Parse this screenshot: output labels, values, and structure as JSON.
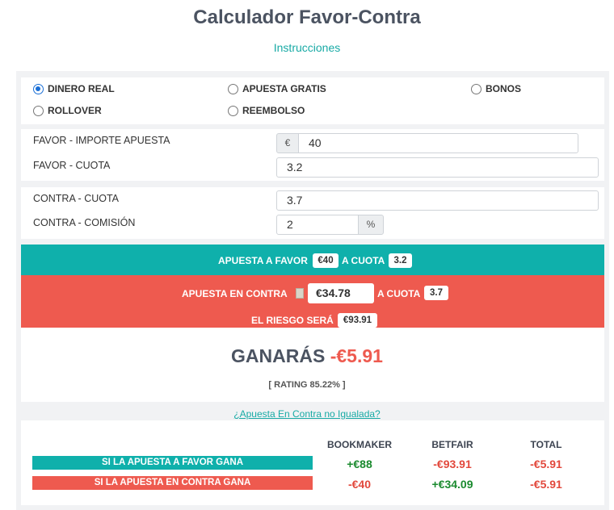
{
  "header": {
    "title": "Calculador Favor-Contra",
    "instructions_link": "Instrucciones"
  },
  "modes": [
    {
      "label": "DINERO REAL",
      "selected": true
    },
    {
      "label": "APUESTA GRATIS",
      "selected": false
    },
    {
      "label": "BONOS",
      "selected": false
    },
    {
      "label": "ROLLOVER",
      "selected": false
    },
    {
      "label": "REEMBOLSO",
      "selected": false
    }
  ],
  "favor": {
    "amount_label": "FAVOR - IMPORTE APUESTA",
    "currency_symbol": "€",
    "amount_value": "40",
    "odds_label": "FAVOR - CUOTA",
    "odds_value": "3.2"
  },
  "contra": {
    "odds_label": "CONTRA - CUOTA",
    "odds_value": "3.7",
    "commission_label": "CONTRA - COMISIÓN",
    "commission_value": "2",
    "percent_symbol": "%"
  },
  "summary": {
    "favor_text": "APUESTA A FAVOR",
    "favor_amount": "€40",
    "at_odds_text": "A CUOTA",
    "favor_odds": "3.2",
    "contra_text": "APUESTA EN CONTRA",
    "contra_amount": "€34.78",
    "contra_at_odds_text": "A CUOTA",
    "contra_odds": "3.7",
    "risk_text": "EL RIESGO SERÁ",
    "risk_amount": "€93.91"
  },
  "result": {
    "win_label": "GANARÁS",
    "win_value": "-€5.91",
    "rating": "[ RATING 85.22% ]"
  },
  "unmatched_link": "¿Apuesta En Contra no Igualada?",
  "table": {
    "headers": [
      "BOOKMAKER",
      "BETFAIR",
      "TOTAL"
    ],
    "rows": [
      {
        "label": "SI LA APUESTA A FAVOR GANA",
        "bookmaker": "+€88",
        "betfair": "-€93.91",
        "total": "-€5.91"
      },
      {
        "label": "SI LA APUESTA EN CONTRA GANA",
        "bookmaker": "-€40",
        "betfair": "+€34.09",
        "total": "-€5.91"
      }
    ]
  },
  "colors": {
    "teal": "#0fb0ab",
    "red": "#ee5a4f",
    "positive": "#1a8a2e",
    "negative": "#e2483c"
  }
}
